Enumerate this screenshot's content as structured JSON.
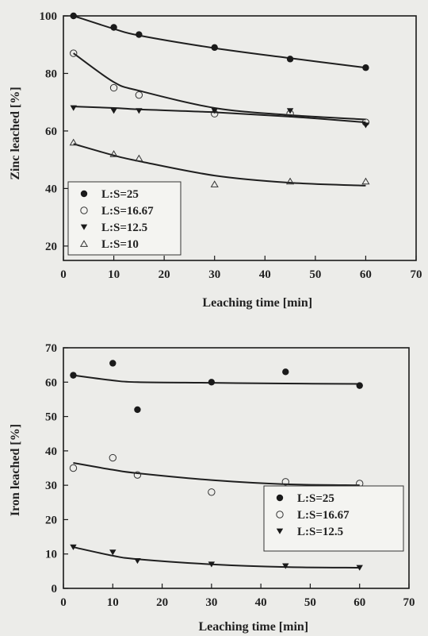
{
  "chart_data": [
    {
      "type": "scatter",
      "title": "",
      "xlabel": "Leaching time [min]",
      "ylabel": "Zinc leached [%]",
      "xlim": [
        0,
        70
      ],
      "ylim": [
        15,
        100
      ],
      "xticks": [
        "0",
        "10",
        "20",
        "30",
        "40",
        "50",
        "60",
        "70"
      ],
      "yticks": [
        "20",
        "40",
        "60",
        "80",
        "100"
      ],
      "grid": false,
      "legend_position": "bottom-left",
      "series": [
        {
          "name": "L:S=25",
          "marker": "filled-circle",
          "x": [
            2,
            10,
            15,
            30,
            45,
            60
          ],
          "y": [
            100,
            96,
            93.5,
            89,
            85,
            82
          ],
          "fit": [
            100,
            95.5,
            93.2,
            88.8,
            85.3,
            82
          ]
        },
        {
          "name": "L:S=16.67",
          "marker": "open-circle",
          "x": [
            2,
            10,
            15,
            30,
            45,
            60
          ],
          "y": [
            87,
            75,
            72.5,
            66,
            66,
            63
          ],
          "fit": [
            87,
            77,
            74,
            68,
            65.5,
            64
          ]
        },
        {
          "name": "L:S=12.5",
          "marker": "filled-triangle-down",
          "x": [
            2,
            10,
            15,
            30,
            45,
            60
          ],
          "y": [
            68,
            67,
            67,
            67,
            67,
            62
          ],
          "fit": [
            68.5,
            68,
            67.5,
            66.5,
            65,
            63
          ]
        },
        {
          "name": "L:S=10",
          "marker": "open-triangle-up",
          "x": [
            2,
            10,
            15,
            30,
            45,
            60
          ],
          "y": [
            56,
            52,
            50.5,
            41.5,
            42.5,
            42.5
          ],
          "fit": [
            55.5,
            51.5,
            49.5,
            44.5,
            42,
            41
          ]
        }
      ]
    },
    {
      "type": "scatter",
      "title": "",
      "xlabel": "Leaching time [min]",
      "ylabel": "Iron leached [%]",
      "xlim": [
        0,
        70
      ],
      "ylim": [
        0,
        70
      ],
      "xticks": [
        "0",
        "10",
        "20",
        "30",
        "40",
        "50",
        "60",
        "70"
      ],
      "yticks": [
        "0",
        "10",
        "20",
        "30",
        "40",
        "50",
        "60",
        "70"
      ],
      "grid": false,
      "legend_position": "bottom-right",
      "series": [
        {
          "name": "L:S=25",
          "marker": "filled-circle",
          "x": [
            2,
            10,
            15,
            30,
            45,
            60
          ],
          "y": [
            62,
            65.5,
            52,
            60,
            63,
            59
          ],
          "fit": [
            62,
            60.5,
            60,
            59.8,
            59.6,
            59.5
          ]
        },
        {
          "name": "L:S=16.67",
          "marker": "open-circle",
          "x": [
            2,
            10,
            15,
            30,
            45,
            60
          ],
          "y": [
            35,
            38,
            33,
            28,
            31,
            30.5
          ],
          "fit": [
            36.5,
            34.5,
            33.5,
            31.5,
            30.3,
            30
          ]
        },
        {
          "name": "L:S=12.5",
          "marker": "filled-triangle-down",
          "x": [
            2,
            10,
            15,
            30,
            45,
            60
          ],
          "y": [
            12,
            10.5,
            8,
            7,
            6.5,
            6
          ],
          "fit": [
            12,
            9.5,
            8.5,
            7,
            6.2,
            6
          ]
        }
      ]
    }
  ]
}
